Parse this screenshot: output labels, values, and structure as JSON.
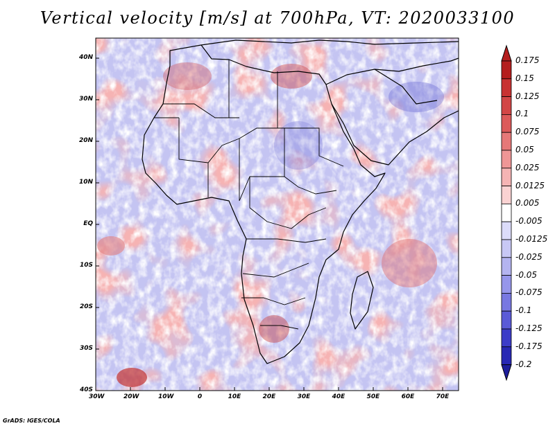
{
  "title": "Vertical velocity [m/s] at 700hPa, VT: 2020033100",
  "footer": "GrADS: IGES/COLA",
  "lat_labels": [
    "40N",
    "30N",
    "20N",
    "10N",
    "EQ",
    "10S",
    "20S",
    "30S",
    "40S"
  ],
  "lon_labels": [
    "30W",
    "20W",
    "10W",
    "0",
    "10E",
    "20E",
    "30E",
    "40E",
    "50E",
    "60E",
    "70E"
  ],
  "map_extent": {
    "lon_min": -30,
    "lon_max": 75,
    "lat_min": -40,
    "lat_max": 45
  },
  "colorbar": {
    "labels": [
      "0.175",
      "0.15",
      "0.125",
      "0.1",
      "0.075",
      "0.05",
      "0.025",
      "0.0125",
      "0.005",
      "-0.005",
      "-0.0125",
      "-0.025",
      "-0.05",
      "-0.075",
      "-0.1",
      "-0.125",
      "-0.175",
      "-0.2"
    ],
    "colors": [
      "#b41e1e",
      "#c83232",
      "#d24646",
      "#dc5a5a",
      "#e67878",
      "#ef9696",
      "#f5b4b4",
      "#fad2d2",
      "#ffffff",
      "#dcdcfa",
      "#c8c8f5",
      "#b4b4f0",
      "#9696eb",
      "#7878e1",
      "#5a5ad7",
      "#3c3cc8",
      "#2828b4",
      "#1e1e9b"
    ]
  }
}
